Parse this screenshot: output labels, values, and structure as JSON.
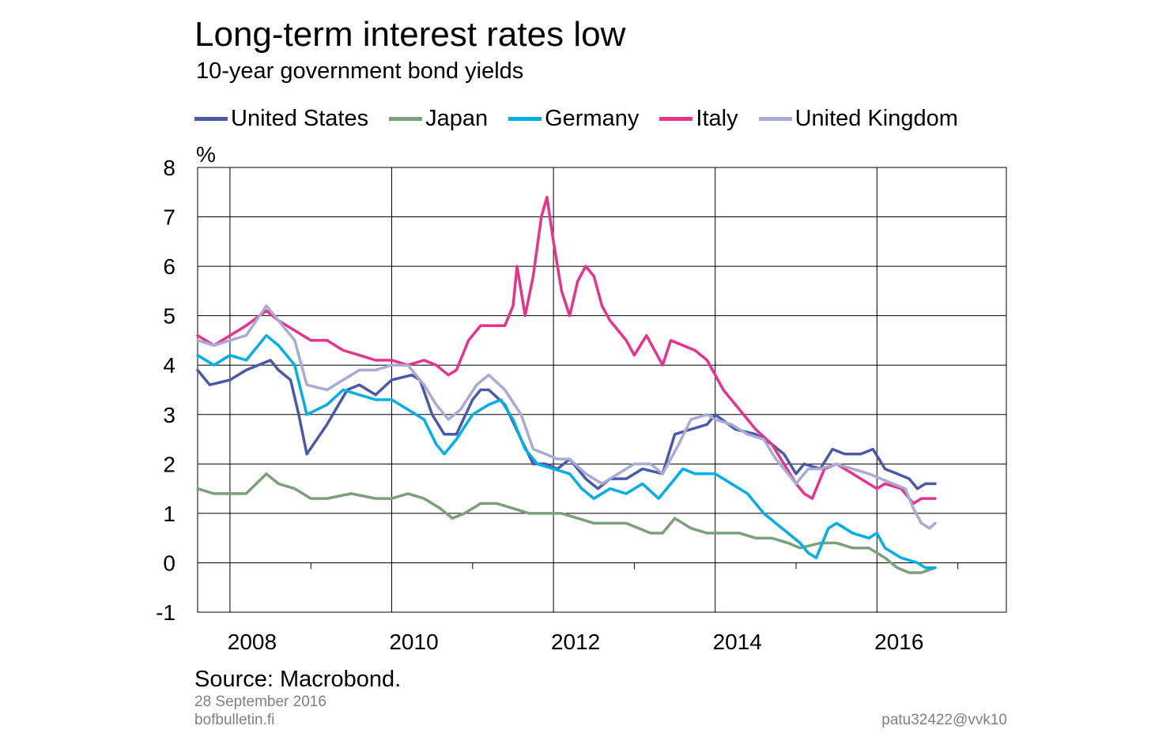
{
  "title": "Long-term interest rates low",
  "subtitle": "10-year government bond yields",
  "ylabel": "%",
  "source": "Source: Macrobond.",
  "date": "28 September 2016",
  "site": "bofbulletin.fi",
  "code": "patu32422@vvk10",
  "chart_data": {
    "type": "line",
    "title": "Long-term interest rates low",
    "subtitle": "10-year government bond yields",
    "ylabel": "%",
    "xlabel": "",
    "ylim": [
      -1,
      8
    ],
    "xlim": [
      2007.6,
      2017.6
    ],
    "yticks": [
      -1,
      0,
      1,
      2,
      3,
      4,
      5,
      6,
      7,
      8
    ],
    "xtick_labels": [
      "2008",
      "2010",
      "2012",
      "2014",
      "2016"
    ],
    "xtick_values": [
      2008,
      2010,
      2012,
      2014,
      2016
    ],
    "grid": true,
    "legend": "top",
    "series": [
      {
        "name": "United States",
        "color": "#4a5aa8",
        "x": [
          2007.6,
          2007.75,
          2008.0,
          2008.2,
          2008.35,
          2008.5,
          2008.6,
          2008.75,
          2008.85,
          2008.95,
          2009.2,
          2009.45,
          2009.6,
          2009.8,
          2010.0,
          2010.25,
          2010.35,
          2010.5,
          2010.65,
          2010.8,
          2011.0,
          2011.1,
          2011.2,
          2011.4,
          2011.6,
          2011.75,
          2011.9,
          2012.05,
          2012.2,
          2012.4,
          2012.55,
          2012.7,
          2012.9,
          2013.1,
          2013.35,
          2013.5,
          2013.7,
          2013.9,
          2014.0,
          2014.25,
          2014.5,
          2014.7,
          2014.85,
          2015.0,
          2015.1,
          2015.3,
          2015.45,
          2015.6,
          2015.8,
          2015.95,
          2016.1,
          2016.25,
          2016.4,
          2016.5,
          2016.6,
          2016.72
        ],
        "values": [
          3.9,
          3.6,
          3.7,
          3.9,
          4.0,
          4.1,
          3.9,
          3.7,
          3.0,
          2.2,
          2.8,
          3.5,
          3.6,
          3.4,
          3.7,
          3.8,
          3.7,
          3.0,
          2.6,
          2.6,
          3.3,
          3.5,
          3.5,
          3.2,
          2.5,
          2.0,
          2.0,
          1.9,
          2.1,
          1.7,
          1.5,
          1.7,
          1.7,
          1.9,
          1.8,
          2.6,
          2.7,
          2.8,
          3.0,
          2.7,
          2.6,
          2.4,
          2.2,
          1.8,
          2.0,
          1.9,
          2.3,
          2.2,
          2.2,
          2.3,
          1.9,
          1.8,
          1.7,
          1.5,
          1.6,
          1.6
        ]
      },
      {
        "name": "Japan",
        "color": "#7ba07b",
        "x": [
          2007.6,
          2007.8,
          2008.0,
          2008.2,
          2008.45,
          2008.6,
          2008.8,
          2009.0,
          2009.2,
          2009.5,
          2009.8,
          2010.0,
          2010.2,
          2010.4,
          2010.6,
          2010.75,
          2010.9,
          2011.1,
          2011.3,
          2011.5,
          2011.7,
          2011.9,
          2012.1,
          2012.3,
          2012.5,
          2012.7,
          2012.9,
          2013.2,
          2013.35,
          2013.5,
          2013.7,
          2013.9,
          2014.1,
          2014.3,
          2014.5,
          2014.7,
          2014.9,
          2015.05,
          2015.3,
          2015.5,
          2015.7,
          2015.9,
          2016.0,
          2016.1,
          2016.25,
          2016.4,
          2016.55,
          2016.72
        ],
        "values": [
          1.5,
          1.4,
          1.4,
          1.4,
          1.8,
          1.6,
          1.5,
          1.3,
          1.3,
          1.4,
          1.3,
          1.3,
          1.4,
          1.3,
          1.1,
          0.9,
          1.0,
          1.2,
          1.2,
          1.1,
          1.0,
          1.0,
          1.0,
          0.9,
          0.8,
          0.8,
          0.8,
          0.6,
          0.6,
          0.9,
          0.7,
          0.6,
          0.6,
          0.6,
          0.5,
          0.5,
          0.4,
          0.3,
          0.4,
          0.4,
          0.3,
          0.3,
          0.2,
          0.1,
          -0.1,
          -0.2,
          -0.2,
          -0.1
        ]
      },
      {
        "name": "Germany",
        "color": "#00aee8",
        "x": [
          2007.6,
          2007.8,
          2008.0,
          2008.2,
          2008.45,
          2008.6,
          2008.8,
          2008.95,
          2009.2,
          2009.4,
          2009.6,
          2009.8,
          2010.0,
          2010.2,
          2010.4,
          2010.55,
          2010.65,
          2010.8,
          2011.0,
          2011.2,
          2011.35,
          2011.5,
          2011.65,
          2011.8,
          2012.0,
          2012.2,
          2012.35,
          2012.5,
          2012.7,
          2012.9,
          2013.1,
          2013.3,
          2013.45,
          2013.6,
          2013.75,
          2013.9,
          2014.0,
          2014.2,
          2014.4,
          2014.6,
          2014.75,
          2014.9,
          2015.05,
          2015.15,
          2015.25,
          2015.4,
          2015.5,
          2015.7,
          2015.9,
          2016.0,
          2016.1,
          2016.3,
          2016.5,
          2016.6,
          2016.72
        ],
        "values": [
          4.2,
          4.0,
          4.2,
          4.1,
          4.6,
          4.4,
          4.0,
          3.0,
          3.2,
          3.5,
          3.4,
          3.3,
          3.3,
          3.1,
          2.9,
          2.4,
          2.2,
          2.5,
          3.0,
          3.2,
          3.3,
          2.9,
          2.3,
          2.0,
          1.9,
          1.8,
          1.5,
          1.3,
          1.5,
          1.4,
          1.6,
          1.3,
          1.6,
          1.9,
          1.8,
          1.8,
          1.8,
          1.6,
          1.4,
          1.0,
          0.8,
          0.6,
          0.4,
          0.2,
          0.1,
          0.7,
          0.8,
          0.6,
          0.5,
          0.6,
          0.3,
          0.1,
          0.0,
          -0.1,
          -0.1
        ]
      },
      {
        "name": "Italy",
        "color": "#e8338e",
        "x": [
          2007.6,
          2007.8,
          2008.0,
          2008.2,
          2008.45,
          2008.6,
          2008.8,
          2009.0,
          2009.2,
          2009.4,
          2009.6,
          2009.8,
          2010.0,
          2010.2,
          2010.4,
          2010.55,
          2010.7,
          2010.8,
          2010.95,
          2011.1,
          2011.2,
          2011.4,
          2011.5,
          2011.55,
          2011.65,
          2011.75,
          2011.85,
          2011.92,
          2012.0,
          2012.1,
          2012.2,
          2012.3,
          2012.4,
          2012.5,
          2012.6,
          2012.7,
          2012.9,
          2013.0,
          2013.15,
          2013.35,
          2013.45,
          2013.6,
          2013.75,
          2013.9,
          2014.1,
          2014.3,
          2014.5,
          2014.7,
          2014.85,
          2015.0,
          2015.1,
          2015.2,
          2015.35,
          2015.5,
          2015.7,
          2015.9,
          2016.0,
          2016.1,
          2016.3,
          2016.45,
          2016.55,
          2016.72
        ],
        "values": [
          4.6,
          4.4,
          4.6,
          4.8,
          5.1,
          4.9,
          4.7,
          4.5,
          4.5,
          4.3,
          4.2,
          4.1,
          4.1,
          4.0,
          4.1,
          4.0,
          3.8,
          3.9,
          4.5,
          4.8,
          4.8,
          4.8,
          5.2,
          6.0,
          5.0,
          5.8,
          7.0,
          7.4,
          6.5,
          5.5,
          5.0,
          5.7,
          6.0,
          5.8,
          5.2,
          4.9,
          4.5,
          4.2,
          4.6,
          4.0,
          4.5,
          4.4,
          4.3,
          4.1,
          3.5,
          3.1,
          2.7,
          2.4,
          2.0,
          1.6,
          1.4,
          1.3,
          1.9,
          2.0,
          1.8,
          1.6,
          1.5,
          1.6,
          1.5,
          1.2,
          1.3,
          1.3
        ]
      },
      {
        "name": "United Kingdom",
        "color": "#a8abd6",
        "x": [
          2007.6,
          2007.8,
          2008.0,
          2008.2,
          2008.45,
          2008.6,
          2008.8,
          2008.95,
          2009.2,
          2009.4,
          2009.6,
          2009.8,
          2010.0,
          2010.2,
          2010.4,
          2010.55,
          2010.7,
          2010.85,
          2011.05,
          2011.2,
          2011.4,
          2011.6,
          2011.75,
          2011.9,
          2012.05,
          2012.2,
          2012.4,
          2012.6,
          2012.8,
          2013.0,
          2013.2,
          2013.35,
          2013.55,
          2013.7,
          2013.9,
          2014.0,
          2014.2,
          2014.4,
          2014.6,
          2014.75,
          2014.9,
          2015.0,
          2015.15,
          2015.3,
          2015.5,
          2015.7,
          2015.9,
          2016.05,
          2016.2,
          2016.35,
          2016.45,
          2016.55,
          2016.65,
          2016.72
        ],
        "values": [
          4.5,
          4.4,
          4.5,
          4.6,
          5.2,
          4.9,
          4.5,
          3.6,
          3.5,
          3.7,
          3.9,
          3.9,
          4.0,
          4.0,
          3.6,
          3.2,
          2.9,
          3.1,
          3.6,
          3.8,
          3.5,
          3.0,
          2.3,
          2.2,
          2.1,
          2.1,
          1.8,
          1.6,
          1.8,
          2.0,
          2.0,
          1.8,
          2.4,
          2.9,
          3.0,
          2.9,
          2.8,
          2.6,
          2.5,
          2.1,
          1.8,
          1.6,
          1.9,
          1.9,
          2.0,
          1.9,
          1.8,
          1.7,
          1.6,
          1.5,
          1.1,
          0.8,
          0.7,
          0.8
        ]
      }
    ]
  }
}
